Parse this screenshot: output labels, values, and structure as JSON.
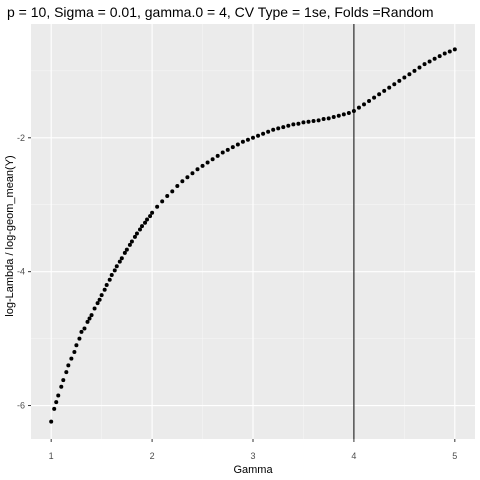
{
  "chart_data": {
    "type": "scatter",
    "title": "p = 10, Sigma = 0.01, gamma.0 = 4, CV Type = 1se, Folds =Random",
    "xlabel": "Gamma",
    "ylabel": "log-Lambda / log-geom_mean(Y)",
    "xlim": [
      0.8,
      5.2
    ],
    "ylim": [
      -6.5,
      -0.3
    ],
    "x_ticks": [
      1,
      2,
      3,
      4,
      5
    ],
    "x_tick_labels": [
      "1",
      "2",
      "3",
      "4",
      "5"
    ],
    "y_ticks": [
      -6,
      -4,
      -2
    ],
    "y_tick_labels": [
      "-6",
      "-4",
      "-2"
    ],
    "grid": true,
    "vline_x": 4,
    "series": [
      {
        "points": [
          [
            1.0,
            -6.24
          ],
          [
            1.03,
            -6.05
          ],
          [
            1.05,
            -5.95
          ],
          [
            1.07,
            -5.85
          ],
          [
            1.1,
            -5.72
          ],
          [
            1.12,
            -5.62
          ],
          [
            1.15,
            -5.5
          ],
          [
            1.17,
            -5.4
          ],
          [
            1.2,
            -5.3
          ],
          [
            1.23,
            -5.2
          ],
          [
            1.25,
            -5.1
          ],
          [
            1.28,
            -5.0
          ],
          [
            1.3,
            -4.9
          ],
          [
            1.33,
            -4.85
          ],
          [
            1.36,
            -4.75
          ],
          [
            1.38,
            -4.7
          ],
          [
            1.4,
            -4.65
          ],
          [
            1.43,
            -4.55
          ],
          [
            1.46,
            -4.47
          ],
          [
            1.48,
            -4.42
          ],
          [
            1.5,
            -4.35
          ],
          [
            1.53,
            -4.27
          ],
          [
            1.55,
            -4.2
          ],
          [
            1.58,
            -4.12
          ],
          [
            1.6,
            -4.05
          ],
          [
            1.63,
            -3.98
          ],
          [
            1.65,
            -3.92
          ],
          [
            1.68,
            -3.85
          ],
          [
            1.7,
            -3.8
          ],
          [
            1.73,
            -3.72
          ],
          [
            1.75,
            -3.67
          ],
          [
            1.78,
            -3.6
          ],
          [
            1.8,
            -3.55
          ],
          [
            1.83,
            -3.48
          ],
          [
            1.85,
            -3.43
          ],
          [
            1.88,
            -3.37
          ],
          [
            1.9,
            -3.32
          ],
          [
            1.93,
            -3.27
          ],
          [
            1.95,
            -3.22
          ],
          [
            1.98,
            -3.17
          ],
          [
            2.0,
            -3.12
          ],
          [
            2.05,
            -3.03
          ],
          [
            2.1,
            -2.95
          ],
          [
            2.15,
            -2.87
          ],
          [
            2.2,
            -2.8
          ],
          [
            2.25,
            -2.72
          ],
          [
            2.3,
            -2.65
          ],
          [
            2.35,
            -2.59
          ],
          [
            2.4,
            -2.53
          ],
          [
            2.45,
            -2.47
          ],
          [
            2.5,
            -2.42
          ],
          [
            2.55,
            -2.37
          ],
          [
            2.6,
            -2.32
          ],
          [
            2.65,
            -2.27
          ],
          [
            2.7,
            -2.22
          ],
          [
            2.75,
            -2.18
          ],
          [
            2.8,
            -2.14
          ],
          [
            2.85,
            -2.1
          ],
          [
            2.9,
            -2.06
          ],
          [
            2.95,
            -2.03
          ],
          [
            3.0,
            -2.0
          ],
          [
            3.05,
            -1.97
          ],
          [
            3.1,
            -1.94
          ],
          [
            3.15,
            -1.91
          ],
          [
            3.2,
            -1.88
          ],
          [
            3.25,
            -1.86
          ],
          [
            3.3,
            -1.84
          ],
          [
            3.35,
            -1.82
          ],
          [
            3.4,
            -1.8
          ],
          [
            3.45,
            -1.79
          ],
          [
            3.5,
            -1.77
          ],
          [
            3.55,
            -1.76
          ],
          [
            3.6,
            -1.75
          ],
          [
            3.65,
            -1.74
          ],
          [
            3.7,
            -1.72
          ],
          [
            3.75,
            -1.71
          ],
          [
            3.8,
            -1.69
          ],
          [
            3.85,
            -1.67
          ],
          [
            3.9,
            -1.65
          ],
          [
            3.95,
            -1.63
          ],
          [
            4.0,
            -1.6
          ],
          [
            4.05,
            -1.55
          ],
          [
            4.1,
            -1.5
          ],
          [
            4.15,
            -1.45
          ],
          [
            4.2,
            -1.4
          ],
          [
            4.25,
            -1.35
          ],
          [
            4.3,
            -1.3
          ],
          [
            4.35,
            -1.25
          ],
          [
            4.4,
            -1.2
          ],
          [
            4.45,
            -1.15
          ],
          [
            4.5,
            -1.1
          ],
          [
            4.55,
            -1.05
          ],
          [
            4.6,
            -1.0
          ],
          [
            4.65,
            -0.95
          ],
          [
            4.7,
            -0.9
          ],
          [
            4.75,
            -0.86
          ],
          [
            4.8,
            -0.82
          ],
          [
            4.85,
            -0.78
          ],
          [
            4.9,
            -0.74
          ],
          [
            4.95,
            -0.71
          ],
          [
            5.0,
            -0.68
          ]
        ]
      }
    ],
    "colors": {
      "panel_bg": "#ebebeb",
      "grid_major": "#ffffff",
      "grid_minor": "#f5f5f5",
      "point": "#000000",
      "vline": "#000000"
    }
  }
}
